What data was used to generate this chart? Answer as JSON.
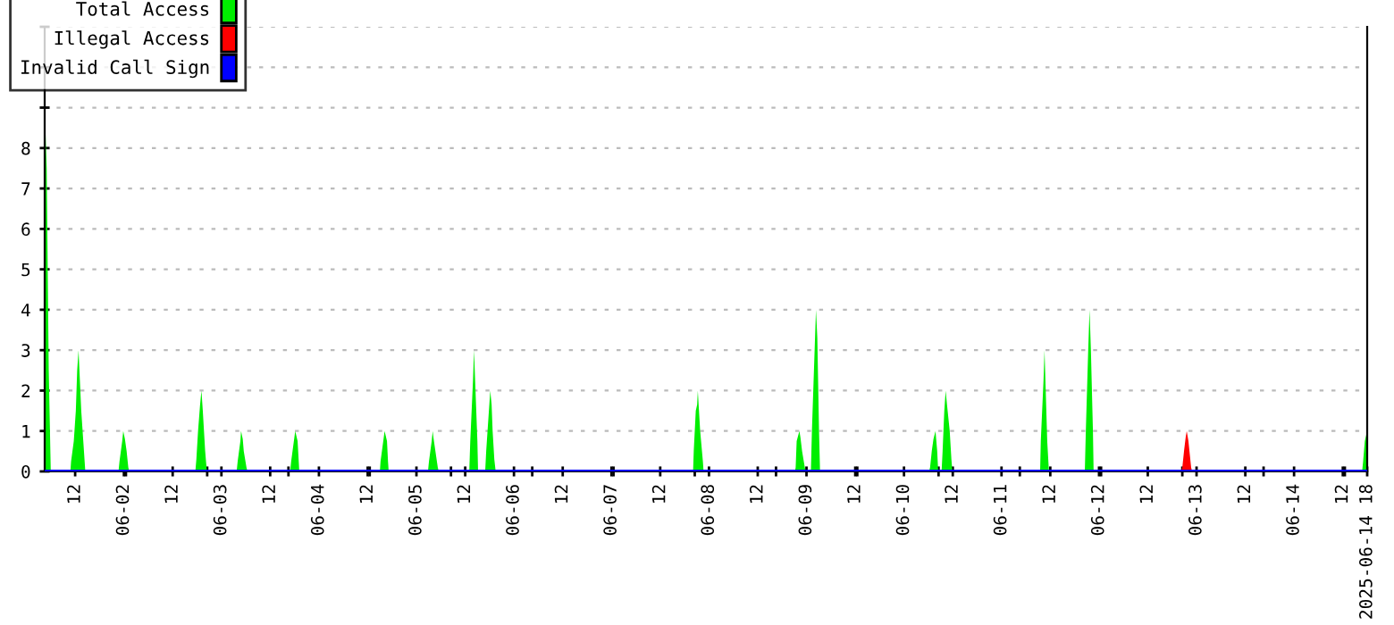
{
  "chart_data": {
    "type": "area",
    "xlim": [
      "2025-06-01T04:30",
      "2025-06-14T18:00"
    ],
    "ylim": [
      0,
      11
    ],
    "yticks": [
      0,
      1,
      2,
      3,
      4,
      5,
      6,
      7,
      8,
      {
        "value": 9,
        "label": null
      },
      {
        "value": 10,
        "label": null
      },
      {
        "value": 11,
        "label": null
      }
    ],
    "xticks": [
      {
        "value": "2025-06-01T12:00",
        "label": "12"
      },
      {
        "value": "2025-06-02T00:00",
        "label": "06-02"
      },
      {
        "value": "2025-06-02T12:00",
        "label": "12"
      },
      {
        "value": "2025-06-03T00:00",
        "label": "06-03"
      },
      {
        "value": "2025-06-03T12:00",
        "label": "12"
      },
      {
        "value": "2025-06-04T00:00",
        "label": "06-04"
      },
      {
        "value": "2025-06-04T12:00",
        "label": "12"
      },
      {
        "value": "2025-06-05T00:00",
        "label": "06-05"
      },
      {
        "value": "2025-06-05T12:00",
        "label": "12"
      },
      {
        "value": "2025-06-06T00:00",
        "label": "06-06"
      },
      {
        "value": "2025-06-06T12:00",
        "label": "12"
      },
      {
        "value": "2025-06-07T00:00",
        "label": "06-07"
      },
      {
        "value": "2025-06-07T12:00",
        "label": "12"
      },
      {
        "value": "2025-06-08T00:00",
        "label": "06-08"
      },
      {
        "value": "2025-06-08T12:00",
        "label": "12"
      },
      {
        "value": "2025-06-09T00:00",
        "label": "06-09"
      },
      {
        "value": "2025-06-09T12:00",
        "label": "12"
      },
      {
        "value": "2025-06-10T00:00",
        "label": "06-10"
      },
      {
        "value": "2025-06-10T12:00",
        "label": "12"
      },
      {
        "value": "2025-06-11T00:00",
        "label": "06-11"
      },
      {
        "value": "2025-06-11T12:00",
        "label": "12"
      },
      {
        "value": "2025-06-12T00:00",
        "label": "06-12"
      },
      {
        "value": "2025-06-12T12:00",
        "label": "12"
      },
      {
        "value": "2025-06-13T00:00",
        "label": "06-13"
      },
      {
        "value": "2025-06-13T12:00",
        "label": "12"
      },
      {
        "value": "2025-06-14T00:00",
        "label": "06-14"
      },
      {
        "value": "2025-06-14T12:00",
        "label": "12"
      },
      {
        "value": "2025-06-14T18:00",
        "label": "2025-06-14 18"
      },
      {
        "value": "2025-06-02T00:30",
        "label": null
      },
      {
        "value": "2025-06-02T20:30",
        "label": null
      },
      {
        "value": "2025-06-03T16:30",
        "label": null
      },
      {
        "value": "2025-06-04T12:30",
        "label": null
      },
      {
        "value": "2025-06-05T08:30",
        "label": null
      },
      {
        "value": "2025-06-06T04:30",
        "label": null
      },
      {
        "value": "2025-06-07T00:30",
        "label": null
      },
      {
        "value": "2025-06-07T20:30",
        "label": null
      },
      {
        "value": "2025-06-08T16:30",
        "label": null
      },
      {
        "value": "2025-06-09T12:30",
        "label": null
      },
      {
        "value": "2025-06-10T08:30",
        "label": null
      },
      {
        "value": "2025-06-11T04:30",
        "label": null
      },
      {
        "value": "2025-06-12T00:30",
        "label": null
      },
      {
        "value": "2025-06-12T20:30",
        "label": null
      },
      {
        "value": "2025-06-13T16:30",
        "label": null
      },
      {
        "value": "2025-06-14T12:30",
        "label": null
      }
    ],
    "grid": "y",
    "legend": "top left",
    "series": [
      {
        "name": "Total Access",
        "color": "#00ee00",
        "x": [
          "2025-06-01T04:30",
          "2025-06-01T05:00",
          "2025-06-01T05:30",
          "2025-06-01T06:00",
          "2025-06-01T10:50",
          "2025-06-01T11:00",
          "2025-06-01T11:40",
          "2025-06-01T12:10",
          "2025-06-01T12:30",
          "2025-06-01T12:50",
          "2025-06-01T13:30",
          "2025-06-01T14:10",
          "2025-06-01T14:30",
          "2025-06-01T22:40",
          "2025-06-01T22:55",
          "2025-06-01T23:35",
          "2025-06-01T23:50",
          "2025-06-02T00:15",
          "2025-06-02T00:40",
          "2025-06-02T01:05",
          "2025-06-02T01:20",
          "2025-06-02T17:35",
          "2025-06-02T17:50",
          "2025-06-02T18:15",
          "2025-06-02T18:45",
          "2025-06-02T19:05",
          "2025-06-02T19:25",
          "2025-06-02T20:00",
          "2025-06-02T20:25",
          "2025-06-03T03:45",
          "2025-06-03T04:00",
          "2025-06-03T04:40",
          "2025-06-03T04:50",
          "2025-06-03T05:15",
          "2025-06-03T05:30",
          "2025-06-03T06:10",
          "2025-06-03T06:25",
          "2025-06-03T16:55",
          "2025-06-03T17:10",
          "2025-06-03T17:50",
          "2025-06-03T18:10",
          "2025-06-03T18:45",
          "2025-06-03T19:10",
          "2025-06-04T15:00",
          "2025-06-04T15:10",
          "2025-06-04T15:50",
          "2025-06-04T16:10",
          "2025-06-04T16:45",
          "2025-06-04T17:00",
          "2025-06-04T17:10",
          "2025-06-05T02:50",
          "2025-06-05T03:05",
          "2025-06-05T03:45",
          "2025-06-05T04:00",
          "2025-06-05T04:10",
          "2025-06-05T04:40",
          "2025-06-05T05:15",
          "2025-06-05T05:30",
          "2025-06-05T13:00",
          "2025-06-05T13:15",
          "2025-06-05T13:55",
          "2025-06-05T14:10",
          "2025-06-05T15:00",
          "2025-06-05T15:10",
          "2025-06-05T16:55",
          "2025-06-05T17:10",
          "2025-06-05T17:50",
          "2025-06-05T18:10",
          "2025-06-05T18:30",
          "2025-06-05T18:45",
          "2025-06-05T19:10",
          "2025-06-05T19:30",
          "2025-06-07T20:05",
          "2025-06-07T20:15",
          "2025-06-07T20:45",
          "2025-06-07T21:05",
          "2025-06-07T21:15",
          "2025-06-07T21:50",
          "2025-06-07T22:30",
          "2025-06-07T22:40",
          "2025-06-08T21:10",
          "2025-06-08T21:20",
          "2025-06-08T21:35",
          "2025-06-08T22:15",
          "2025-06-08T22:30",
          "2025-06-08T22:55",
          "2025-06-08T23:35",
          "2025-06-08T23:45",
          "2025-06-09T01:05",
          "2025-06-09T01:20",
          "2025-06-09T02:00",
          "2025-06-09T02:20",
          "2025-06-09T02:40",
          "2025-06-09T03:05",
          "2025-06-09T03:20",
          "2025-06-10T06:10",
          "2025-06-10T06:25",
          "2025-06-10T06:50",
          "2025-06-10T07:15",
          "2025-06-10T07:45",
          "2025-06-10T08:10",
          "2025-06-10T08:25",
          "2025-06-10T09:15",
          "2025-06-10T09:30",
          "2025-06-10T09:55",
          "2025-06-10T10:15",
          "2025-06-10T10:35",
          "2025-06-10T11:15",
          "2025-06-10T11:40",
          "2025-06-10T11:55",
          "2025-06-11T09:30",
          "2025-06-11T09:40",
          "2025-06-11T10:20",
          "2025-06-11T10:35",
          "2025-06-11T11:15",
          "2025-06-11T11:40",
          "2025-06-11T20:30",
          "2025-06-11T20:45",
          "2025-06-11T21:20",
          "2025-06-11T21:40",
          "2025-06-11T22:00",
          "2025-06-11T22:30",
          "2025-06-11T22:40",
          "2025-06-14T16:45",
          "2025-06-14T17:00",
          "2025-06-14T17:25",
          "2025-06-14T18:00"
        ],
        "values": [
          9,
          7.5,
          2.5,
          0,
          0,
          0.25,
          0.75,
          1.5,
          2.5,
          3,
          1.5,
          0.5,
          0,
          0,
          0.25,
          0.75,
          1,
          0.8,
          0.5,
          0.1,
          0,
          0,
          0.3,
          1,
          1.65,
          2,
          1.5,
          0.5,
          0,
          0,
          0.25,
          0.75,
          1,
          0.8,
          0.5,
          0.1,
          0,
          0,
          0.25,
          0.75,
          1,
          0.75,
          0,
          0,
          0.25,
          0.75,
          1,
          0.75,
          0.25,
          0,
          0,
          0.25,
          0.75,
          1,
          0.85,
          0.5,
          0.1,
          0,
          0,
          0.75,
          2.25,
          3,
          0.75,
          0,
          0,
          0.5,
          1.5,
          2,
          1.65,
          1,
          0.3,
          0,
          0,
          0.5,
          1.5,
          1.65,
          2,
          1,
          0.25,
          0,
          0,
          0.1,
          0.75,
          1,
          0.85,
          0.5,
          0.1,
          0,
          0,
          1,
          3,
          4,
          3.3,
          1,
          0,
          0,
          0.1,
          0.5,
          0.8,
          1,
          0.5,
          0,
          0,
          0.5,
          1.5,
          2,
          1.65,
          1,
          0.3,
          0,
          0,
          0.75,
          2.25,
          3,
          0.75,
          0,
          0,
          1,
          3,
          4,
          3,
          1,
          0,
          0,
          0.25,
          0.75,
          1
        ]
      },
      {
        "name": "Illegal Access",
        "color": "#ff0000",
        "x": [
          "2025-06-12T20:15",
          "2025-06-12T20:30",
          "2025-06-12T20:55",
          "2025-06-12T21:20",
          "2025-06-12T21:35",
          "2025-06-12T22:00",
          "2025-06-12T22:40",
          "2025-06-12T22:55"
        ],
        "values": [
          0,
          0.1,
          0.5,
          0.85,
          1,
          0.75,
          0.1,
          0
        ]
      },
      {
        "name": "Invalid Call Sign",
        "color": "#0000ff",
        "type": "line",
        "x": [
          "2025-06-01T04:30",
          "2025-06-14T18:00"
        ],
        "values": [
          0,
          0
        ]
      }
    ]
  }
}
